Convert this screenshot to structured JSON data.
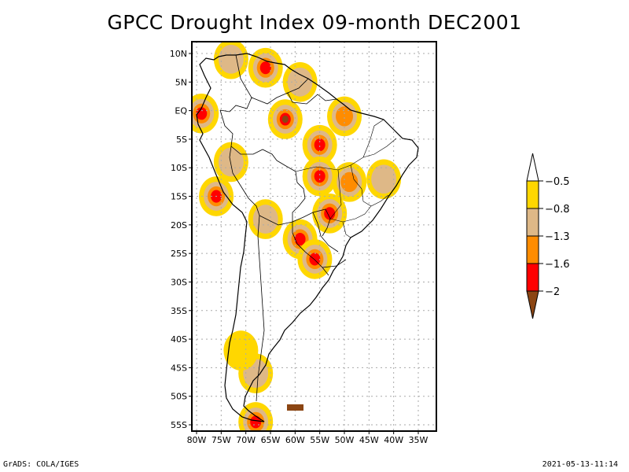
{
  "title": "GPCC Drought Index 09-month DEC2001",
  "footer": {
    "left": "GrADS: COLA/IGES",
    "right": "2021-05-13-11:14"
  },
  "axes": {
    "lat_ticks": [
      "10N",
      "5N",
      "EQ",
      "5S",
      "10S",
      "15S",
      "20S",
      "25S",
      "30S",
      "35S",
      "40S",
      "45S",
      "50S",
      "55S"
    ],
    "lat_values": [
      10,
      5,
      0,
      -5,
      -10,
      -15,
      -20,
      -25,
      -30,
      -35,
      -40,
      -45,
      -50,
      -55
    ],
    "lon_ticks": [
      "80W",
      "75W",
      "70W",
      "65W",
      "60W",
      "55W",
      "50W",
      "45W",
      "40W",
      "35W"
    ],
    "lon_values": [
      -80,
      -75,
      -70,
      -65,
      -60,
      -55,
      -50,
      -45,
      -40,
      -35
    ],
    "lon_range": [
      -81,
      -31.5
    ],
    "lat_range": [
      12,
      -56
    ]
  },
  "colorbar": {
    "labels": [
      "-0.5",
      "-0.8",
      "-1.3",
      "-1.6",
      "-2"
    ],
    "bins": [
      {
        "name": "above -0.5",
        "color": "#ffffff"
      },
      {
        "name": "-0.8 to -0.5",
        "color": "#ffd700"
      },
      {
        "name": "-1.3 to -0.8",
        "color": "#deb887"
      },
      {
        "name": "-1.6 to -1.3",
        "color": "#ff8c00"
      },
      {
        "name": "-2 to -1.6",
        "color": "#ff0000"
      },
      {
        "name": "below -2",
        "color": "#8b4513"
      }
    ]
  },
  "drought_regions": [
    {
      "name": "venezuela-north",
      "lon": -66,
      "lat": 7.5,
      "level": 4
    },
    {
      "name": "colombia-north",
      "lon": -73,
      "lat": 9,
      "level": 2
    },
    {
      "name": "guyana",
      "lon": -59,
      "lat": 5,
      "level": 2
    },
    {
      "name": "ecuador-coast",
      "lon": -79,
      "lat": -0.5,
      "level": 4
    },
    {
      "name": "central-amazon",
      "lon": -62,
      "lat": -1.5,
      "level": 5
    },
    {
      "name": "amazon-delta",
      "lon": -50,
      "lat": -1,
      "level": 3
    },
    {
      "name": "para-south",
      "lon": -55,
      "lat": -6,
      "level": 4
    },
    {
      "name": "mato-grosso",
      "lon": -55,
      "lat": -11.5,
      "level": 4
    },
    {
      "name": "peru-north",
      "lon": -73,
      "lat": -9,
      "level": 2
    },
    {
      "name": "peru-south",
      "lon": -76,
      "lat": -15,
      "level": 4
    },
    {
      "name": "bolivia",
      "lon": -66,
      "lat": -19,
      "level": 2
    },
    {
      "name": "goias",
      "lon": -49,
      "lat": -12.5,
      "level": 3
    },
    {
      "name": "bahia",
      "lon": -42,
      "lat": -12,
      "level": 2
    },
    {
      "name": "minas",
      "lon": -53,
      "lat": -18,
      "level": 4
    },
    {
      "name": "paraguay",
      "lon": -59,
      "lat": -22.5,
      "level": 4
    },
    {
      "name": "argentina-ne",
      "lon": -56,
      "lat": -26,
      "level": 4
    },
    {
      "name": "patagonia",
      "lon": -68,
      "lat": -46,
      "level": 2
    },
    {
      "name": "chile-south",
      "lon": -71,
      "lat": -42,
      "level": 1
    },
    {
      "name": "tierra-del-fuego",
      "lon": -68,
      "lat": -54.5,
      "level": 4
    },
    {
      "name": "falklands",
      "lon": -59.5,
      "lat": -51.7,
      "level": 5
    }
  ]
}
